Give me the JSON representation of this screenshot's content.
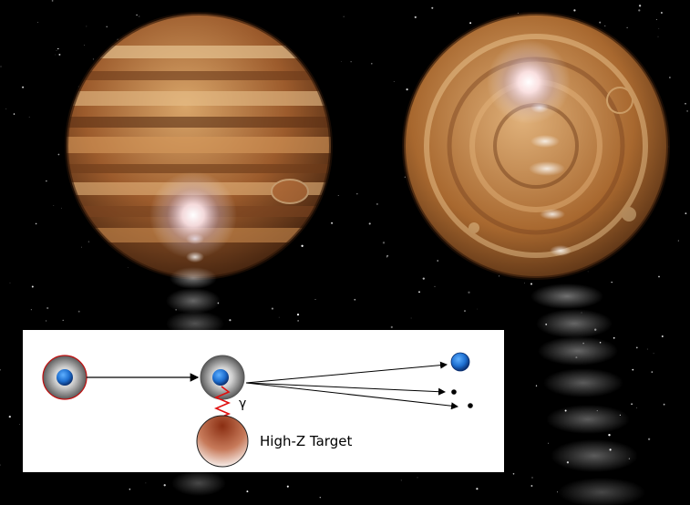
{
  "scene": {
    "background_color": "#000000",
    "planet_colors": [
      "#8a4f25",
      "#b97a3c",
      "#d9a66a",
      "#5e3417"
    ],
    "inset_background": "#ffffff"
  },
  "diagram": {
    "photon_symbol": "γ",
    "target_label": "High-Z Target",
    "projectile_color": "#1e6fd0",
    "photon_color": "#e01010",
    "target_color": "#b0502a"
  }
}
